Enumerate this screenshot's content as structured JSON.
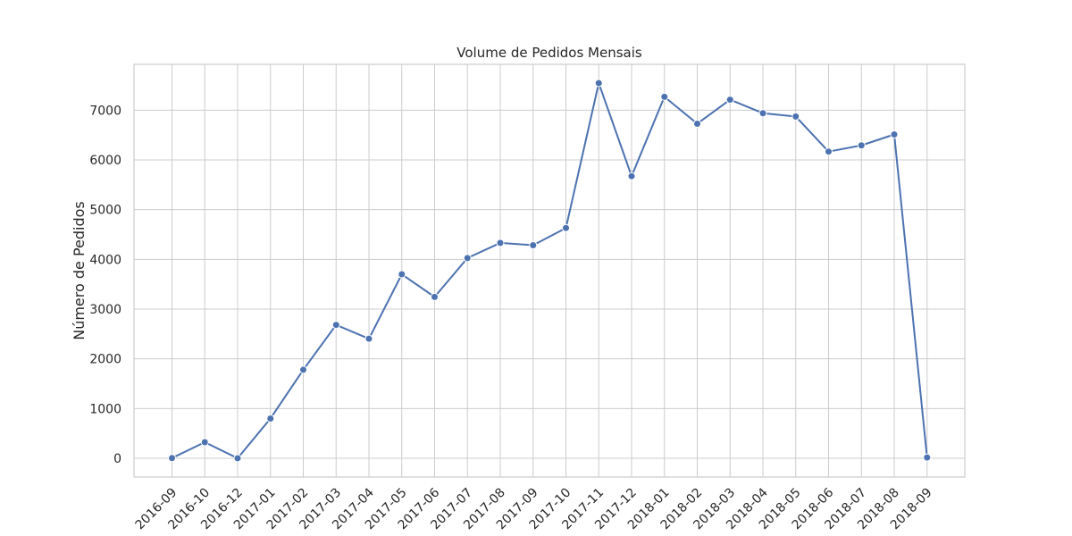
{
  "chart_data": {
    "type": "line",
    "title": "Volume de Pedidos Mensais",
    "xlabel": "",
    "ylabel": "Número de Pedidos",
    "categories": [
      "2016-09",
      "2016-10",
      "2016-12",
      "2017-01",
      "2017-02",
      "2017-03",
      "2017-04",
      "2017-05",
      "2017-06",
      "2017-07",
      "2017-08",
      "2017-09",
      "2017-10",
      "2017-11",
      "2017-12",
      "2018-01",
      "2018-02",
      "2018-03",
      "2018-04",
      "2018-05",
      "2018-06",
      "2018-07",
      "2018-08",
      "2018-09"
    ],
    "series": [
      {
        "values": [
          4,
          324,
          1,
          800,
          1780,
          2682,
          2404,
          3700,
          3245,
          4026,
          4331,
          4285,
          4631,
          7544,
          5673,
          7269,
          6728,
          7211,
          6939,
          6873,
          6167,
          6292,
          6512,
          16
        ],
        "color": "#4c72b0"
      }
    ],
    "y_ticks": [
      0,
      1000,
      2000,
      3000,
      4000,
      5000,
      6000,
      7000
    ],
    "ylim": [
      -377,
      7922
    ],
    "grid": true,
    "legend": "none",
    "marker": "circle"
  }
}
